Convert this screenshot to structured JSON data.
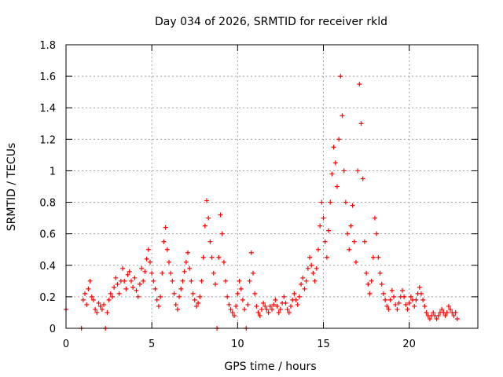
{
  "chart_data": {
    "type": "scatter",
    "title": "Day 034 of 2026, SRMTID for receiver rkld",
    "xlabel": "GPS time / hours",
    "ylabel": "SRMTID / TECUs",
    "xlim": [
      0,
      24
    ],
    "ylim": [
      0,
      1.8
    ],
    "xticks": [
      0,
      5,
      10,
      15,
      20
    ],
    "xtick_labels": [
      "0",
      "5",
      "10",
      "15",
      "20"
    ],
    "yticks": [
      0,
      0.2,
      0.4,
      0.6,
      0.8,
      1,
      1.2,
      1.4,
      1.6,
      1.8
    ],
    "ytick_labels": [
      "0",
      "0.2",
      "0.4",
      "0.6",
      "0.8",
      "1",
      "1.2",
      "1.4",
      "1.6",
      "1.8"
    ],
    "grid": true,
    "marker": "+",
    "series": [
      {
        "name": "SRMTID",
        "color": "#ff0000",
        "points": [
          [
            0.0,
            0.12
          ],
          [
            0.9,
            0.0
          ],
          [
            1.0,
            0.18
          ],
          [
            1.1,
            0.22
          ],
          [
            1.2,
            0.15
          ],
          [
            1.3,
            0.25
          ],
          [
            1.4,
            0.3
          ],
          [
            1.5,
            0.2
          ],
          [
            1.6,
            0.18
          ],
          [
            1.7,
            0.12
          ],
          [
            1.8,
            0.1
          ],
          [
            1.9,
            0.16
          ],
          [
            2.0,
            0.14
          ],
          [
            2.1,
            0.12
          ],
          [
            2.2,
            0.15
          ],
          [
            2.3,
            0.0
          ],
          [
            2.4,
            0.1
          ],
          [
            2.5,
            0.18
          ],
          [
            2.6,
            0.22
          ],
          [
            2.7,
            0.2
          ],
          [
            2.8,
            0.26
          ],
          [
            2.9,
            0.32
          ],
          [
            3.0,
            0.28
          ],
          [
            3.1,
            0.22
          ],
          [
            3.2,
            0.3
          ],
          [
            3.3,
            0.38
          ],
          [
            3.4,
            0.3
          ],
          [
            3.5,
            0.25
          ],
          [
            3.6,
            0.34
          ],
          [
            3.7,
            0.36
          ],
          [
            3.8,
            0.3
          ],
          [
            3.9,
            0.26
          ],
          [
            4.0,
            0.32
          ],
          [
            4.1,
            0.24
          ],
          [
            4.2,
            0.2
          ],
          [
            4.3,
            0.28
          ],
          [
            4.4,
            0.38
          ],
          [
            4.5,
            0.3
          ],
          [
            4.6,
            0.36
          ],
          [
            4.7,
            0.44
          ],
          [
            4.8,
            0.5
          ],
          [
            4.9,
            0.42
          ],
          [
            5.0,
            0.35
          ],
          [
            5.1,
            0.3
          ],
          [
            5.2,
            0.25
          ],
          [
            5.3,
            0.18
          ],
          [
            5.4,
            0.14
          ],
          [
            5.5,
            0.2
          ],
          [
            5.6,
            0.35
          ],
          [
            5.7,
            0.55
          ],
          [
            5.8,
            0.64
          ],
          [
            5.9,
            0.5
          ],
          [
            6.0,
            0.42
          ],
          [
            6.1,
            0.35
          ],
          [
            6.2,
            0.3
          ],
          [
            6.3,
            0.22
          ],
          [
            6.4,
            0.15
          ],
          [
            6.5,
            0.12
          ],
          [
            6.6,
            0.2
          ],
          [
            6.7,
            0.25
          ],
          [
            6.8,
            0.3
          ],
          [
            6.9,
            0.36
          ],
          [
            7.0,
            0.42
          ],
          [
            7.1,
            0.48
          ],
          [
            7.2,
            0.38
          ],
          [
            7.3,
            0.3
          ],
          [
            7.4,
            0.22
          ],
          [
            7.5,
            0.18
          ],
          [
            7.6,
            0.14
          ],
          [
            7.7,
            0.16
          ],
          [
            7.8,
            0.2
          ],
          [
            7.9,
            0.3
          ],
          [
            8.0,
            0.45
          ],
          [
            8.1,
            0.65
          ],
          [
            8.2,
            0.81
          ],
          [
            8.3,
            0.7
          ],
          [
            8.4,
            0.55
          ],
          [
            8.5,
            0.45
          ],
          [
            8.6,
            0.35
          ],
          [
            8.7,
            0.28
          ],
          [
            8.8,
            0.0
          ],
          [
            8.9,
            0.45
          ],
          [
            9.0,
            0.72
          ],
          [
            9.1,
            0.6
          ],
          [
            9.2,
            0.42
          ],
          [
            9.3,
            0.3
          ],
          [
            9.4,
            0.2
          ],
          [
            9.5,
            0.15
          ],
          [
            9.6,
            0.12
          ],
          [
            9.7,
            0.1
          ],
          [
            9.8,
            0.08
          ],
          [
            9.9,
            0.14
          ],
          [
            10.0,
            0.22
          ],
          [
            10.1,
            0.3
          ],
          [
            10.2,
            0.25
          ],
          [
            10.3,
            0.18
          ],
          [
            10.4,
            0.12
          ],
          [
            10.5,
            0.0
          ],
          [
            10.6,
            0.15
          ],
          [
            10.7,
            0.3
          ],
          [
            10.8,
            0.48
          ],
          [
            10.9,
            0.35
          ],
          [
            11.0,
            0.22
          ],
          [
            11.1,
            0.14
          ],
          [
            11.2,
            0.1
          ],
          [
            11.3,
            0.08
          ],
          [
            11.4,
            0.12
          ],
          [
            11.5,
            0.16
          ],
          [
            11.6,
            0.14
          ],
          [
            11.7,
            0.12
          ],
          [
            11.8,
            0.1
          ],
          [
            11.9,
            0.14
          ],
          [
            12.0,
            0.12
          ],
          [
            12.1,
            0.15
          ],
          [
            12.2,
            0.18
          ],
          [
            12.3,
            0.14
          ],
          [
            12.4,
            0.1
          ],
          [
            12.5,
            0.12
          ],
          [
            12.6,
            0.16
          ],
          [
            12.7,
            0.2
          ],
          [
            12.8,
            0.16
          ],
          [
            12.9,
            0.12
          ],
          [
            13.0,
            0.1
          ],
          [
            13.1,
            0.14
          ],
          [
            13.2,
            0.18
          ],
          [
            13.3,
            0.22
          ],
          [
            13.4,
            0.18
          ],
          [
            13.5,
            0.15
          ],
          [
            13.6,
            0.2
          ],
          [
            13.7,
            0.28
          ],
          [
            13.8,
            0.32
          ],
          [
            13.9,
            0.25
          ],
          [
            14.0,
            0.3
          ],
          [
            14.1,
            0.38
          ],
          [
            14.2,
            0.45
          ],
          [
            14.3,
            0.4
          ],
          [
            14.4,
            0.35
          ],
          [
            14.5,
            0.3
          ],
          [
            14.6,
            0.38
          ],
          [
            14.7,
            0.5
          ],
          [
            14.8,
            0.65
          ],
          [
            14.9,
            0.8
          ],
          [
            15.0,
            0.7
          ],
          [
            15.1,
            0.55
          ],
          [
            15.2,
            0.45
          ],
          [
            15.3,
            0.62
          ],
          [
            15.4,
            0.8
          ],
          [
            15.5,
            0.98
          ],
          [
            15.6,
            1.15
          ],
          [
            15.7,
            1.05
          ],
          [
            15.8,
            0.9
          ],
          [
            15.9,
            1.2
          ],
          [
            16.0,
            1.6
          ],
          [
            16.1,
            1.35
          ],
          [
            16.2,
            1.0
          ],
          [
            16.3,
            0.8
          ],
          [
            16.4,
            0.6
          ],
          [
            16.5,
            0.5
          ],
          [
            16.6,
            0.65
          ],
          [
            16.7,
            0.78
          ],
          [
            16.8,
            0.55
          ],
          [
            16.9,
            0.42
          ],
          [
            17.0,
            1.0
          ],
          [
            17.1,
            1.55
          ],
          [
            17.2,
            1.3
          ],
          [
            17.3,
            0.95
          ],
          [
            17.4,
            0.55
          ],
          [
            17.5,
            0.35
          ],
          [
            17.6,
            0.28
          ],
          [
            17.7,
            0.22
          ],
          [
            17.8,
            0.3
          ],
          [
            17.9,
            0.45
          ],
          [
            18.0,
            0.7
          ],
          [
            18.1,
            0.6
          ],
          [
            18.2,
            0.45
          ],
          [
            18.3,
            0.35
          ],
          [
            18.4,
            0.28
          ],
          [
            18.5,
            0.22
          ],
          [
            18.6,
            0.18
          ],
          [
            18.7,
            0.14
          ],
          [
            18.8,
            0.12
          ],
          [
            18.9,
            0.18
          ],
          [
            19.0,
            0.24
          ],
          [
            19.1,
            0.2
          ],
          [
            19.2,
            0.15
          ],
          [
            19.3,
            0.12
          ],
          [
            19.4,
            0.16
          ],
          [
            19.5,
            0.2
          ],
          [
            19.6,
            0.24
          ],
          [
            19.7,
            0.2
          ],
          [
            19.8,
            0.15
          ],
          [
            19.9,
            0.12
          ],
          [
            20.0,
            0.16
          ],
          [
            20.1,
            0.2
          ],
          [
            20.2,
            0.18
          ],
          [
            20.3,
            0.14
          ],
          [
            20.4,
            0.18
          ],
          [
            20.5,
            0.22
          ],
          [
            20.6,
            0.26
          ],
          [
            20.7,
            0.22
          ],
          [
            20.8,
            0.18
          ],
          [
            20.9,
            0.14
          ],
          [
            21.0,
            0.1
          ],
          [
            21.1,
            0.08
          ],
          [
            21.2,
            0.06
          ],
          [
            21.3,
            0.08
          ],
          [
            21.4,
            0.1
          ],
          [
            21.5,
            0.08
          ],
          [
            21.6,
            0.06
          ],
          [
            21.7,
            0.08
          ],
          [
            21.8,
            0.1
          ],
          [
            21.9,
            0.12
          ],
          [
            22.0,
            0.1
          ],
          [
            22.1,
            0.08
          ],
          [
            22.2,
            0.1
          ],
          [
            22.3,
            0.14
          ],
          [
            22.4,
            0.12
          ],
          [
            22.5,
            0.1
          ],
          [
            22.6,
            0.08
          ],
          [
            22.7,
            0.1
          ],
          [
            22.8,
            0.06
          ]
        ]
      }
    ]
  }
}
